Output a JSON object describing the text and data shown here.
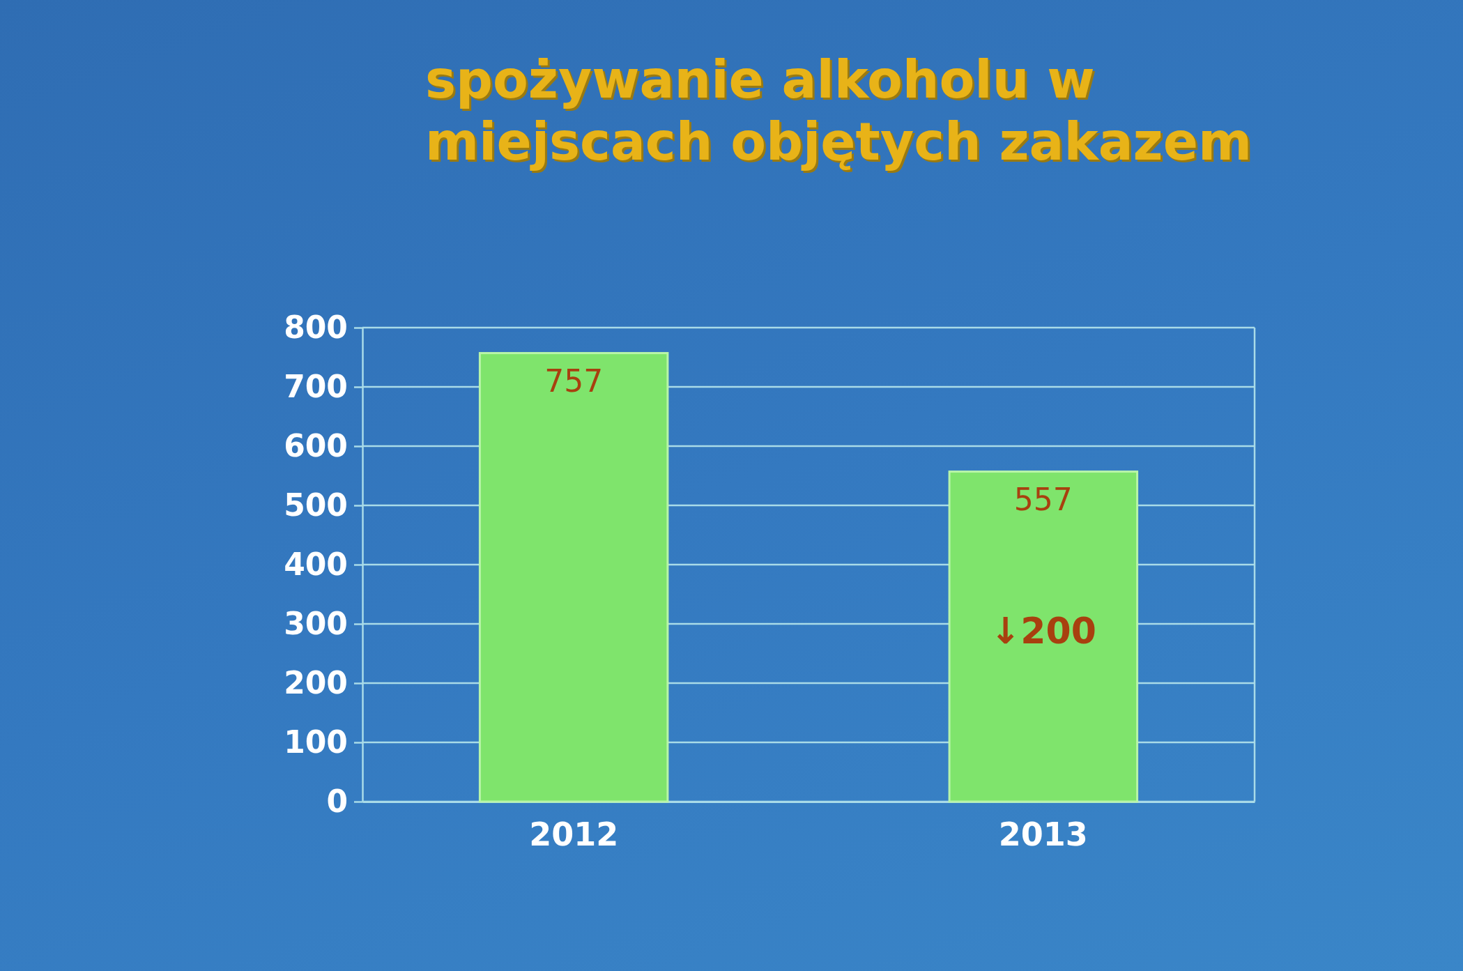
{
  "chart_data": {
    "type": "bar",
    "title": "spożywanie alkoholu w miejscach objętych zakazem",
    "categories": [
      "2012",
      "2013"
    ],
    "values": [
      757,
      557
    ],
    "color": "#7fe46c",
    "ylim": [
      0,
      800
    ],
    "yticks": [
      0,
      100,
      200,
      300,
      400,
      500,
      600,
      700,
      800
    ],
    "grid": "y",
    "data_labels": true,
    "annotations": [
      "↓200"
    ]
  }
}
